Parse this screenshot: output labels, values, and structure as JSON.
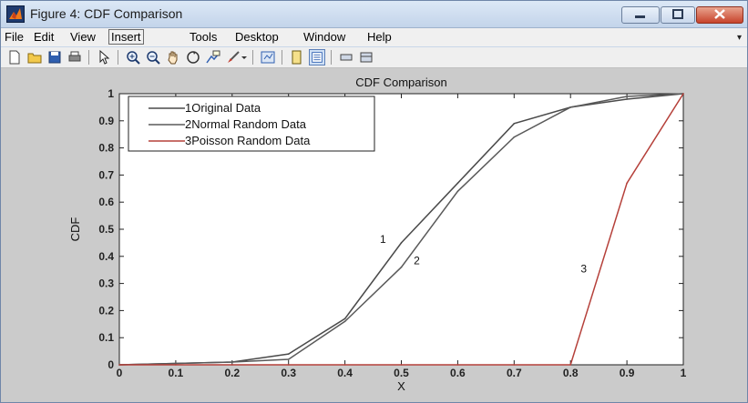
{
  "window": {
    "title": "Figure 4: CDF Comparison",
    "controls": [
      "minimize-icon",
      "maximize-icon",
      "close-icon"
    ]
  },
  "menu": [
    "File",
    "Edit",
    "View",
    "Insert",
    "Tools",
    "Desktop",
    "Window",
    "Help"
  ],
  "toolbar": [
    "new-figure-icon",
    "open-file-icon",
    "save-icon",
    "print-icon",
    "pointer-icon",
    "zoom-in-icon",
    "zoom-out-icon",
    "pan-icon",
    "rotate-3d-icon",
    "data-cursor-icon",
    "brush-icon",
    "brush-dropdown-icon",
    "link-plot-icon",
    "colorbar-icon",
    "legend-icon",
    "hide-plot-tools-icon",
    "show-plot-tools-icon"
  ],
  "colors": {
    "series1": "#4a4a4a",
    "series2": "#5a5a5a",
    "series3": "#b5403a",
    "figure_bg": "#cbcbcb",
    "axes_bg": "#ffffff"
  },
  "chart_data": {
    "type": "line",
    "title": "CDF Comparison",
    "xlabel": "X",
    "ylabel": "CDF",
    "xlim": [
      0,
      1
    ],
    "ylim": [
      0,
      1
    ],
    "xticks": [
      0,
      0.1,
      0.2,
      0.3,
      0.4,
      0.5,
      0.6,
      0.7,
      0.8,
      0.9,
      1
    ],
    "yticks": [
      0,
      0.1,
      0.2,
      0.3,
      0.4,
      0.5,
      0.6,
      0.7,
      0.8,
      0.9,
      1
    ],
    "xtick_labels": [
      "0",
      "0.1",
      "0.2",
      "0.3",
      "0.4",
      "0.5",
      "0.6",
      "0.7",
      "0.8",
      "0.9",
      "1"
    ],
    "ytick_labels": [
      "0",
      "0.1",
      "0.2",
      "0.3",
      "0.4",
      "0.5",
      "0.6",
      "0.7",
      "0.8",
      "0.9",
      "1"
    ],
    "grid": false,
    "legend_position": "top-left",
    "series": [
      {
        "name": "Original Data",
        "marker": "1",
        "x": [
          0,
          0.1,
          0.2,
          0.3,
          0.4,
          0.5,
          0.6,
          0.7,
          0.8,
          0.9,
          1
        ],
        "y": [
          0,
          0.005,
          0.01,
          0.04,
          0.17,
          0.45,
          0.67,
          0.89,
          0.95,
          0.98,
          1
        ]
      },
      {
        "name": "Normal Random Data",
        "marker": "2",
        "x": [
          0,
          0.1,
          0.2,
          0.3,
          0.4,
          0.5,
          0.6,
          0.7,
          0.8,
          0.9,
          1
        ],
        "y": [
          0,
          0.005,
          0.01,
          0.02,
          0.16,
          0.36,
          0.64,
          0.84,
          0.95,
          0.99,
          1
        ]
      },
      {
        "name": "Poisson Random Data",
        "marker": "3",
        "x": [
          0,
          0.1,
          0.2,
          0.3,
          0.4,
          0.5,
          0.6,
          0.7,
          0.8,
          0.9,
          1
        ],
        "y": [
          0,
          0,
          0,
          0,
          0,
          0,
          0,
          0,
          0,
          0.67,
          1
        ]
      }
    ],
    "annotations": [
      {
        "text": "1",
        "x": 0.462,
        "y": 0.45
      },
      {
        "text": "2",
        "x": 0.522,
        "y": 0.37
      },
      {
        "text": "3",
        "x": 0.818,
        "y": 0.34
      }
    ]
  }
}
